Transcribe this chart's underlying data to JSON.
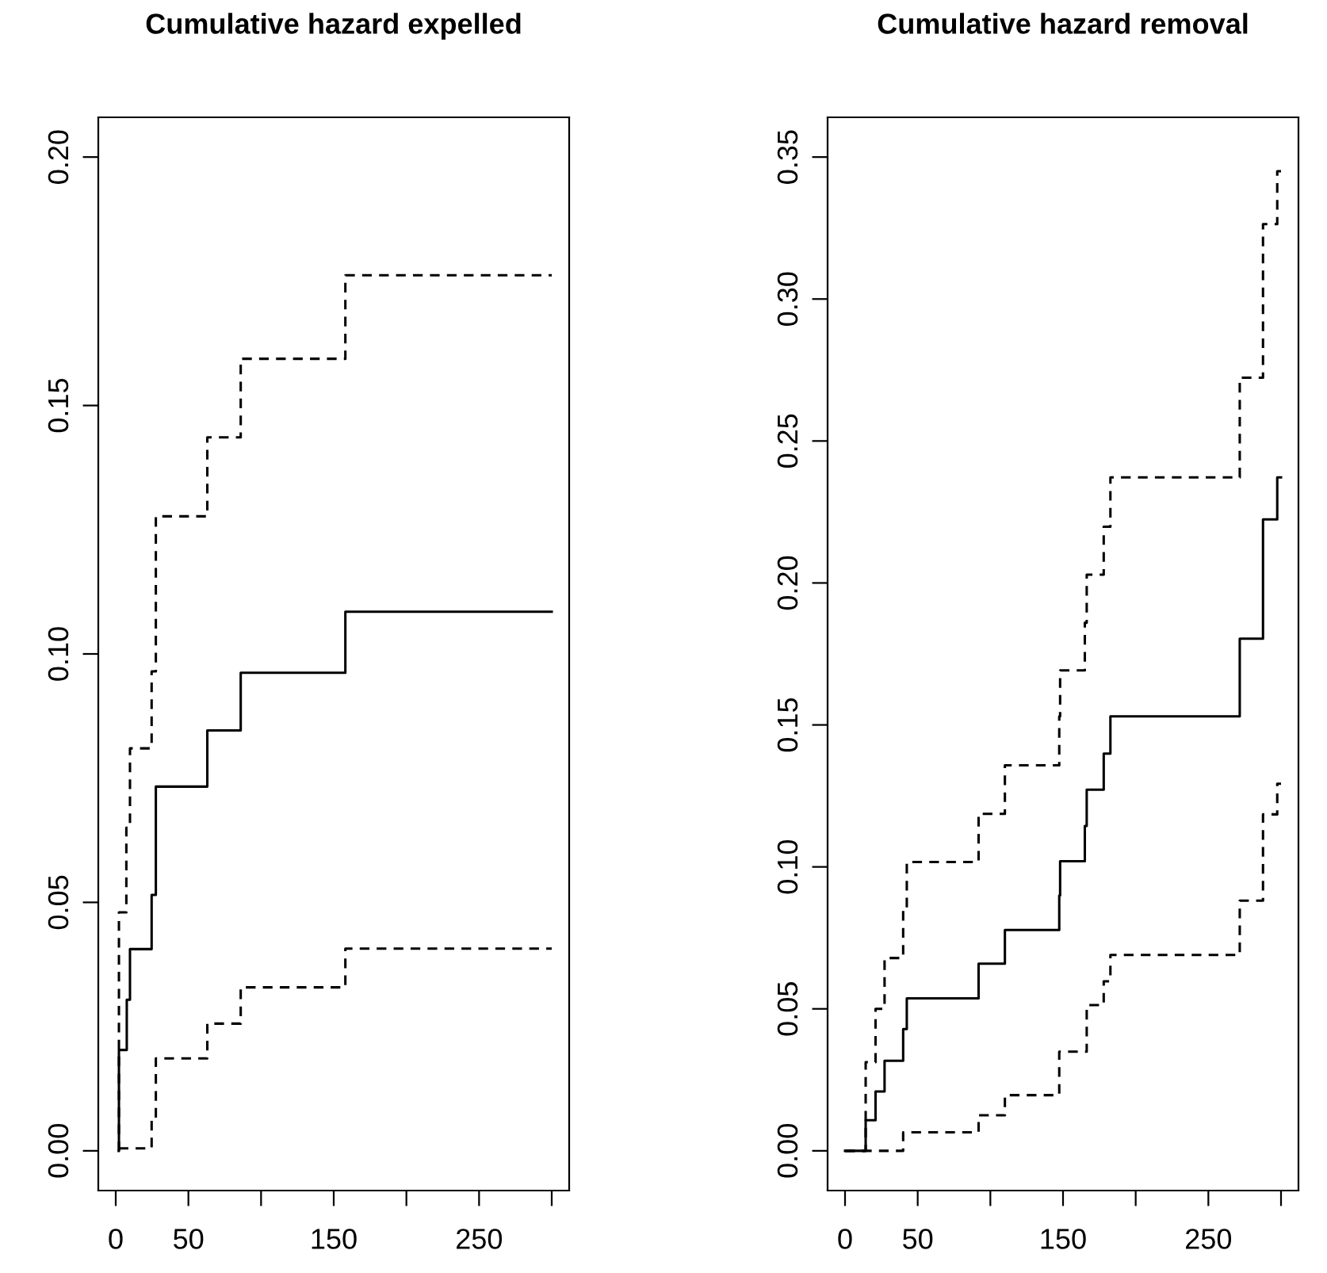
{
  "chart_data": [
    {
      "type": "step",
      "title": "Cumulative hazard expelled",
      "xlim": [
        -12,
        312
      ],
      "ylim": [
        -0.008,
        0.208
      ],
      "xticks": [
        0,
        50,
        {
          "value": 100,
          "label": null
        },
        150,
        {
          "value": 200,
          "label": null
        },
        250,
        {
          "value": 300,
          "label": null
        }
      ],
      "yticks": [
        {
          "value": 0,
          "label": "0.00"
        },
        0.05,
        {
          "value": 0.1,
          "label": "0.10"
        },
        0.15,
        {
          "value": 0.2,
          "label": "0.20"
        }
      ],
      "grid": false,
      "series": [
        {
          "color": "#000000",
          "line_style": "solid",
          "x": [
            2,
            2.2,
            7.6,
            9.8,
            24.7,
            27.6,
            63,
            86,
            158,
            300
          ],
          "values": [
            0,
            0.0203,
            0.0304,
            0.0406,
            0.0515,
            0.0733,
            0.0846,
            0.0962,
            0.1085,
            0.1085
          ]
        },
        {
          "color": "#000000",
          "line_style": "dashed",
          "x": [
            2,
            2.2,
            7.3,
            9.8,
            24.7,
            27.6,
            63,
            86,
            158,
            300
          ],
          "values": [
            0,
            0.048,
            0.065,
            0.081,
            0.0965,
            0.1277,
            0.1436,
            0.1594,
            0.1762,
            0.1762
          ]
        },
        {
          "color": "#000000",
          "line_style": "dashed",
          "x": [
            2,
            24.7,
            27.6,
            63,
            86,
            158,
            300
          ],
          "values": [
            0.0005,
            0.0061,
            0.0186,
            0.0256,
            0.0329,
            0.0407,
            0.0407
          ]
        }
      ]
    },
    {
      "type": "step",
      "title": "Cumulative hazard removal",
      "xlim": [
        -12,
        312
      ],
      "ylim": [
        -0.014,
        0.364
      ],
      "xticks": [
        0,
        50,
        {
          "value": 100,
          "label": null
        },
        150,
        {
          "value": 200,
          "label": null
        },
        250,
        {
          "value": 300,
          "label": null
        }
      ],
      "yticks": [
        {
          "value": 0,
          "label": "0.00"
        },
        0.05,
        {
          "value": 0.1,
          "label": "0.10"
        },
        0.15,
        {
          "value": 0.2,
          "label": "0.20"
        },
        0.25,
        {
          "value": 0.3,
          "label": "0.30"
        },
        0.35
      ],
      "grid": false,
      "series": [
        {
          "color": "#000000",
          "line_style": "solid",
          "x": [
            0,
            14.2,
            21,
            27.2,
            40,
            42.5,
            91.9,
            110,
            147.4,
            148,
            165,
            166.3,
            178,
            182.6,
            271.6,
            287.6,
            297.4,
            300
          ],
          "values": [
            0,
            0.0108,
            0.0209,
            0.0317,
            0.0429,
            0.0537,
            0.0659,
            0.0778,
            0.0899,
            0.102,
            0.1144,
            0.1272,
            0.1399,
            0.153,
            0.1804,
            0.2224,
            0.2372,
            0.2372
          ]
        },
        {
          "color": "#000000",
          "line_style": "dashed",
          "x": [
            0,
            14.2,
            21,
            27.2,
            40,
            42.5,
            91.9,
            110,
            147.4,
            148,
            165,
            166.3,
            178,
            182.6,
            271.6,
            287.6,
            297.4,
            300
          ],
          "values": [
            0,
            0.0312,
            0.05,
            0.0679,
            0.0851,
            0.1017,
            0.1187,
            0.1358,
            0.153,
            0.1692,
            0.186,
            0.2029,
            0.2198,
            0.2372,
            0.2723,
            0.3264,
            0.345,
            0.345
          ]
        },
        {
          "color": "#000000",
          "line_style": "dashed",
          "x": [
            0,
            40,
            91.9,
            110,
            147.4,
            166.3,
            178,
            182.6,
            271.6,
            287.6,
            297.4,
            300
          ],
          "values": [
            0,
            0.0065,
            0.0125,
            0.0196,
            0.0349,
            0.0513,
            0.0597,
            0.069,
            0.0881,
            0.1185,
            0.1293,
            0.1293
          ]
        }
      ]
    }
  ]
}
